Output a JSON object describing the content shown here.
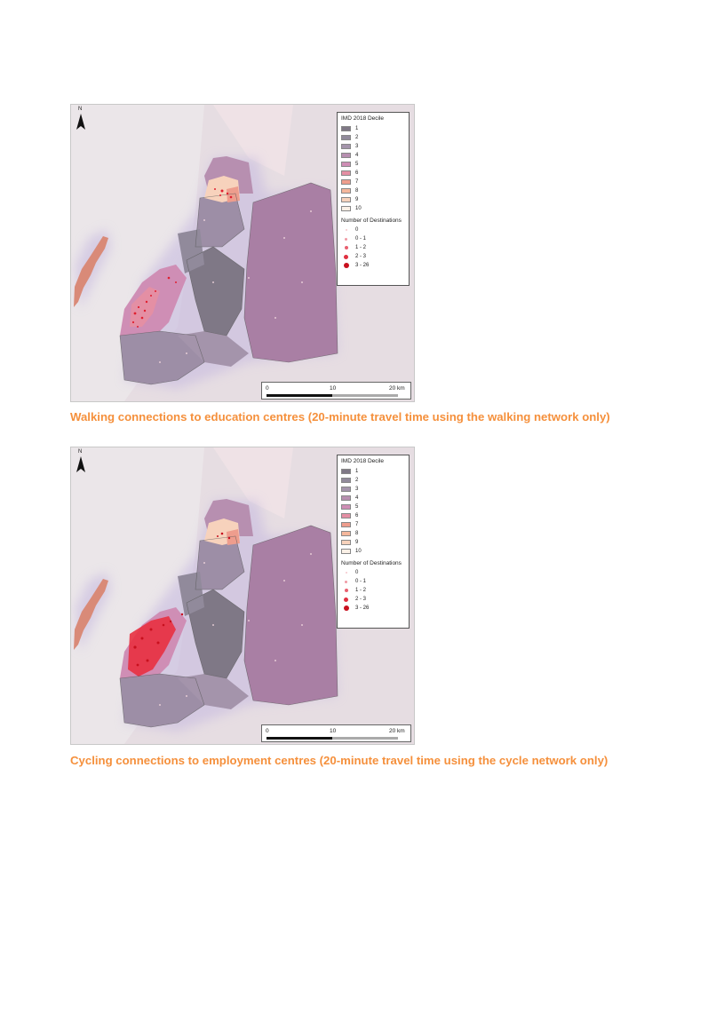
{
  "figures": [
    {
      "id": "walking",
      "legend": {
        "title_decile": "IMD 2018 Decile",
        "deciles": [
          {
            "label": "1",
            "color": "#7f7886"
          },
          {
            "label": "2",
            "color": "#918a9b"
          },
          {
            "label": "3",
            "color": "#a494ab"
          },
          {
            "label": "4",
            "color": "#b78fb0"
          },
          {
            "label": "5",
            "color": "#cf8eb5"
          },
          {
            "label": "6",
            "color": "#e48fa4"
          },
          {
            "label": "7",
            "color": "#ee9d8d"
          },
          {
            "label": "8",
            "color": "#f4b79c"
          },
          {
            "label": "9",
            "color": "#f7d2bc"
          },
          {
            "label": "10",
            "color": "#fbf0e6"
          }
        ],
        "title_destinations": "Number of Destinations",
        "destinations": [
          "0",
          "0 - 1",
          "1 - 2",
          "2 - 3",
          "3 - 26"
        ]
      },
      "scalebar": {
        "labels": [
          "0",
          "10",
          "20 km"
        ]
      },
      "north_label": "N",
      "caption": "Walking connections to education centres (20-minute travel time using the walking network only)"
    },
    {
      "id": "cycling",
      "legend": {
        "title_decile": "IMD 2018 Decile",
        "deciles": [
          {
            "label": "1",
            "color": "#7f7886"
          },
          {
            "label": "2",
            "color": "#918a9b"
          },
          {
            "label": "3",
            "color": "#a494ab"
          },
          {
            "label": "4",
            "color": "#b78fb0"
          },
          {
            "label": "5",
            "color": "#cf8eb5"
          },
          {
            "label": "6",
            "color": "#e48fa4"
          },
          {
            "label": "7",
            "color": "#ee9d8d"
          },
          {
            "label": "8",
            "color": "#f4b79c"
          },
          {
            "label": "9",
            "color": "#f7d2bc"
          },
          {
            "label": "10",
            "color": "#fbf0e6"
          }
        ],
        "title_destinations": "Number of Destinations",
        "destinations": [
          "0",
          "0 - 1",
          "1 - 2",
          "2 - 3",
          "3 - 26"
        ]
      },
      "scalebar": {
        "labels": [
          "0",
          "10",
          "20 km"
        ]
      },
      "north_label": "N",
      "caption": "Cycling connections to employment centres (20-minute travel time using the cycle network only)"
    }
  ]
}
